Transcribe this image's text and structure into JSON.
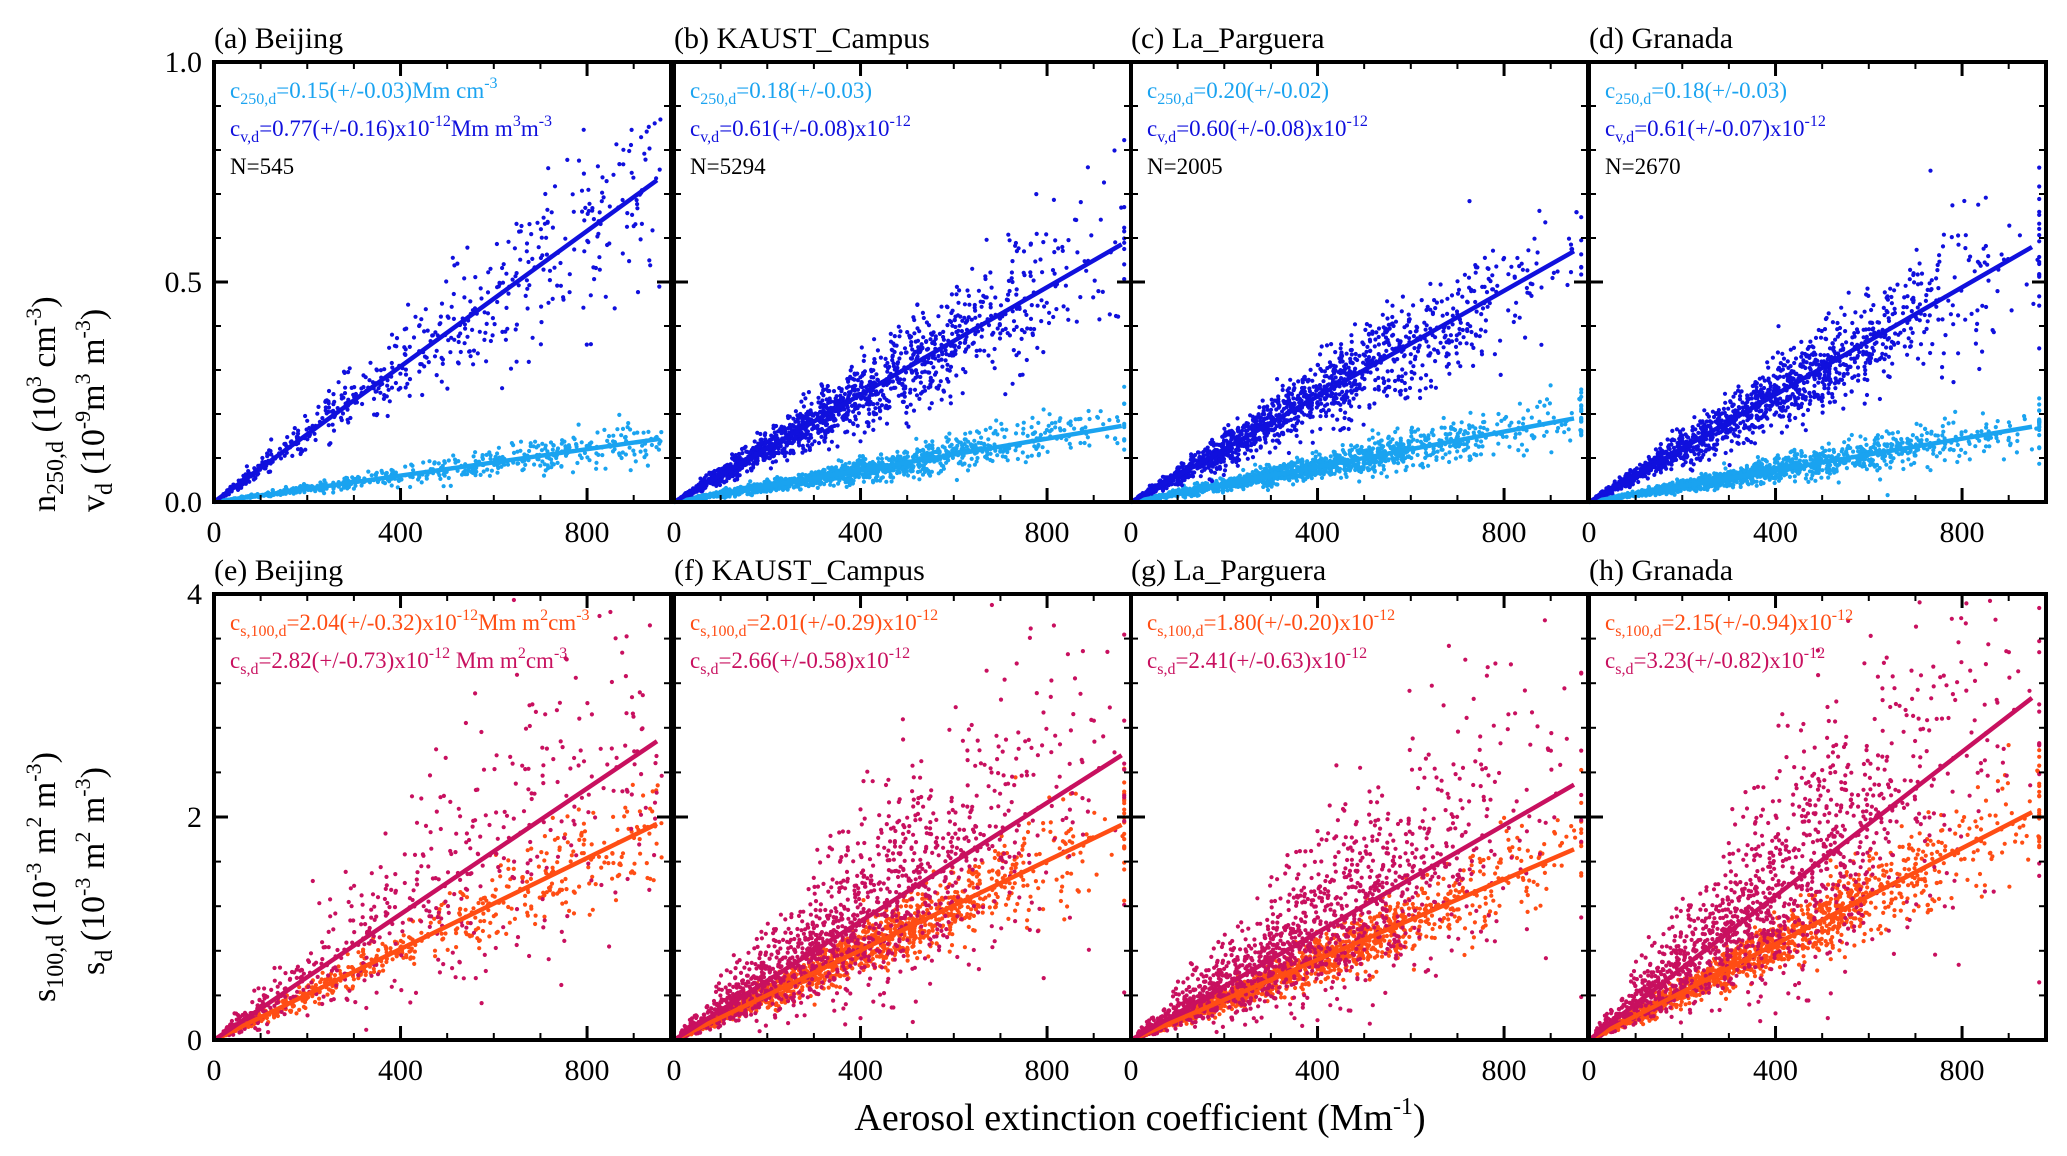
{
  "figure": {
    "xlabel": {
      "main": "Aerosol extinction coefficient (Mm",
      "sup": "-1",
      "close": ")"
    },
    "ylabel_top": {
      "n_main": "n",
      "n_sub": "250,d",
      "n_unit": " (10",
      "n_sup": "3",
      "n_unit2": " cm",
      "n_sup2": "-3",
      "n_close": ")",
      "v_main": "v",
      "v_sub": "d",
      "v_unit": " (10",
      "v_sup": "-9",
      "v_unit2": "m",
      "v_sup2": "3",
      "v_unit3": " m",
      "v_sup3": "-3",
      "v_close": ")"
    },
    "ylabel_bottom": {
      "s100_main": "s",
      "s100_sub": "100,d",
      "s100_unit": " (10",
      "s100_sup": "-3",
      "s100_unit2": " m",
      "s100_sup2": "2",
      "s100_unit3": " m",
      "s100_sup3": "-3",
      "s100_close": ")",
      "s_main": "s",
      "s_sub": "d",
      "s_unit": " (10",
      "s_sup": "-3",
      "s_unit2": " m",
      "s_sup2": "2",
      "s_unit3": " m",
      "s_sup3": "-3",
      "s_close": ")"
    }
  },
  "colors": {
    "light_blue": "#1aa3f0",
    "dark_blue": "#1010dd",
    "orange": "#ff4d14",
    "magenta": "#c8105f",
    "black": "#000000"
  },
  "chart_data": [
    {
      "id": "a",
      "type": "scatter",
      "title": "(a) Beijing",
      "xlim": [
        0,
        980
      ],
      "ylim": [
        0,
        1.0
      ],
      "yticks": [
        "0.0",
        "0.5",
        "1.0"
      ],
      "xticks": [
        "0",
        "400",
        "800"
      ],
      "series": [
        {
          "name": "n250,d",
          "color": "light_blue",
          "slope": 0.00015,
          "xmax": 950
        },
        {
          "name": "vd",
          "color": "dark_blue",
          "slope": 0.00077,
          "xmax": 950
        }
      ],
      "n_points": 545,
      "annotations": [
        {
          "color": "light_blue",
          "main": "c",
          "sub": "250,d",
          "text": "=0.15(+/-0.03)Mm cm",
          "sup": "-3",
          "tail": ""
        },
        {
          "color": "dark_blue",
          "main": "c",
          "sub": "v,d",
          "text": "=0.77(+/-0.16)x10",
          "sup": "-12",
          "tail": "Mm m",
          "sup2": "3",
          "tail2": "m",
          "sup3": "-3"
        },
        {
          "color": "black",
          "main": "N=545",
          "sub": "",
          "text": "",
          "sup": "",
          "tail": ""
        }
      ]
    },
    {
      "id": "b",
      "type": "scatter",
      "title": "(b) KAUST_Campus",
      "xlim": [
        0,
        980
      ],
      "ylim": [
        0,
        1.0
      ],
      "yticks": [
        "",
        "",
        ""
      ],
      "xticks": [
        "0",
        "400",
        "800"
      ],
      "series": [
        {
          "name": "n250,d",
          "color": "light_blue",
          "slope": 0.00018,
          "xmax": 960
        },
        {
          "name": "vd",
          "color": "dark_blue",
          "slope": 0.00061,
          "xmax": 960
        }
      ],
      "n_points": 5294,
      "annotations": [
        {
          "color": "light_blue",
          "main": "c",
          "sub": "250,d",
          "text": "=0.18(+/-0.03)",
          "sup": "",
          "tail": ""
        },
        {
          "color": "dark_blue",
          "main": "c",
          "sub": "v,d",
          "text": "=0.61(+/-0.08)x10",
          "sup": "-12",
          "tail": ""
        },
        {
          "color": "black",
          "main": "N=5294",
          "sub": "",
          "text": "",
          "sup": "",
          "tail": ""
        }
      ]
    },
    {
      "id": "c",
      "type": "scatter",
      "title": "(c) La_Parguera",
      "xlim": [
        0,
        980
      ],
      "ylim": [
        0,
        1.0
      ],
      "yticks": [
        "",
        "",
        ""
      ],
      "xticks": [
        "0",
        "400",
        "800"
      ],
      "series": [
        {
          "name": "n250,d",
          "color": "light_blue",
          "slope": 0.0002,
          "xmax": 950
        },
        {
          "name": "vd",
          "color": "dark_blue",
          "slope": 0.0006,
          "xmax": 950
        }
      ],
      "n_points": 2005,
      "annotations": [
        {
          "color": "light_blue",
          "main": "c",
          "sub": "250,d",
          "text": "=0.20(+/-0.02)",
          "sup": "",
          "tail": ""
        },
        {
          "color": "dark_blue",
          "main": "c",
          "sub": "v,d",
          "text": "=0.60(+/-0.08)x10",
          "sup": "-12",
          "tail": ""
        },
        {
          "color": "black",
          "main": "N=2005",
          "sub": "",
          "text": "",
          "sup": "",
          "tail": ""
        }
      ]
    },
    {
      "id": "d",
      "type": "scatter",
      "title": "(d) Granada",
      "xlim": [
        0,
        980
      ],
      "ylim": [
        0,
        1.0
      ],
      "yticks": [
        "",
        "",
        ""
      ],
      "xticks": [
        "0",
        "400",
        "800"
      ],
      "series": [
        {
          "name": "n250,d",
          "color": "light_blue",
          "slope": 0.00018,
          "xmax": 950
        },
        {
          "name": "vd",
          "color": "dark_blue",
          "slope": 0.00061,
          "xmax": 950
        }
      ],
      "n_points": 2670,
      "annotations": [
        {
          "color": "light_blue",
          "main": "c",
          "sub": "250,d",
          "text": "=0.18(+/-0.03)",
          "sup": "",
          "tail": ""
        },
        {
          "color": "dark_blue",
          "main": "c",
          "sub": "v,d",
          "text": "=0.61(+/-0.07)x10",
          "sup": "-12",
          "tail": ""
        },
        {
          "color": "black",
          "main": "N=2670",
          "sub": "",
          "text": "",
          "sup": "",
          "tail": ""
        }
      ]
    },
    {
      "id": "e",
      "type": "scatter",
      "title": "(e) Beijing",
      "xlim": [
        0,
        980
      ],
      "ylim": [
        0,
        4
      ],
      "yticks": [
        "0",
        "2",
        "4"
      ],
      "xticks": [
        "0",
        "400",
        "800"
      ],
      "series": [
        {
          "name": "s100,d",
          "color": "orange",
          "slope": 0.00204,
          "xmax": 950
        },
        {
          "name": "sd",
          "color": "magenta",
          "slope": 0.00282,
          "xmax": 950
        }
      ],
      "n_points": 545,
      "annotations": [
        {
          "color": "orange",
          "main": "c",
          "sub": "s,100,d",
          "text": "=2.04(+/-0.32)x10",
          "sup": "-12",
          "tail": "Mm m",
          "sup2": "2",
          "tail2": "cm",
          "sup3": "-3"
        },
        {
          "color": "magenta",
          "main": "c",
          "sub": "s,d",
          "text": "=2.82(+/-0.73)x10",
          "sup": "-12",
          "tail": " Mm m",
          "sup2": "2",
          "tail2": "cm",
          "sup3": "-3"
        }
      ]
    },
    {
      "id": "f",
      "type": "scatter",
      "title": "(f) KAUST_Campus",
      "xlim": [
        0,
        980
      ],
      "ylim": [
        0,
        4
      ],
      "yticks": [
        "",
        "",
        ""
      ],
      "xticks": [
        "0",
        "400",
        "800"
      ],
      "series": [
        {
          "name": "s100,d",
          "color": "orange",
          "slope": 0.00201,
          "xmax": 960
        },
        {
          "name": "sd",
          "color": "magenta",
          "slope": 0.00266,
          "xmax": 960
        }
      ],
      "n_points": 5294,
      "annotations": [
        {
          "color": "orange",
          "main": "c",
          "sub": "s,100,d",
          "text": "=2.01(+/-0.29)x10",
          "sup": "-12",
          "tail": ""
        },
        {
          "color": "magenta",
          "main": "c",
          "sub": "s,d",
          "text": "=2.66(+/-0.58)x10",
          "sup": "-12",
          "tail": ""
        }
      ]
    },
    {
      "id": "g",
      "type": "scatter",
      "title": "(g) La_Parguera",
      "xlim": [
        0,
        980
      ],
      "ylim": [
        0,
        4
      ],
      "yticks": [
        "",
        "",
        ""
      ],
      "xticks": [
        "0",
        "400",
        "800"
      ],
      "series": [
        {
          "name": "s100,d",
          "color": "orange",
          "slope": 0.0018,
          "xmax": 950
        },
        {
          "name": "sd",
          "color": "magenta",
          "slope": 0.00241,
          "xmax": 950
        }
      ],
      "n_points": 2005,
      "annotations": [
        {
          "color": "orange",
          "main": "c",
          "sub": "s,100,d",
          "text": "=1.80(+/-0.20)x10",
          "sup": "-12",
          "tail": ""
        },
        {
          "color": "magenta",
          "main": "c",
          "sub": "s,d",
          "text": "=2.41(+/-0.63)x10",
          "sup": "-12",
          "tail": ""
        }
      ]
    },
    {
      "id": "h",
      "type": "scatter",
      "title": "(h) Granada",
      "xlim": [
        0,
        980
      ],
      "ylim": [
        0,
        4
      ],
      "yticks": [
        "",
        "",
        ""
      ],
      "xticks": [
        "0",
        "400",
        "800"
      ],
      "series": [
        {
          "name": "s100,d",
          "color": "orange",
          "slope": 0.00215,
          "xmax": 950
        },
        {
          "name": "sd",
          "color": "magenta",
          "slope": 0.00323,
          "xmax": 950
        }
      ],
      "n_points": 2670,
      "annotations": [
        {
          "color": "orange",
          "main": "c",
          "sub": "s,100,d",
          "text": "=2.15(+/-0.94)x10",
          "sup": "-12",
          "tail": ""
        },
        {
          "color": "magenta",
          "main": "c",
          "sub": "s,d",
          "text": "=3.23(+/-0.82)x10",
          "sup": "-12",
          "tail": ""
        }
      ]
    }
  ]
}
